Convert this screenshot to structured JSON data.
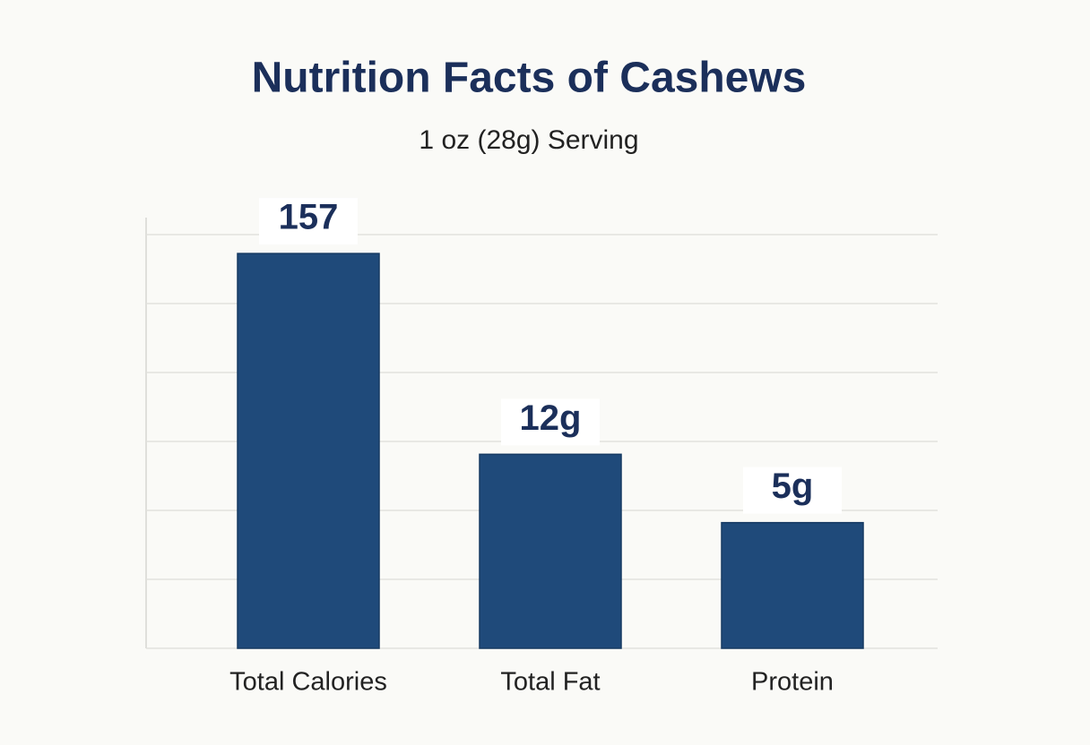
{
  "chart_data": {
    "type": "bar",
    "title": "Nutrition Facts of Cashews",
    "subtitle": "1 oz (28g) Serving",
    "categories": [
      "Total Calories",
      "Total Fat",
      "Protein"
    ],
    "values": [
      157,
      12,
      5
    ],
    "value_labels": [
      "157",
      "12g",
      "5g"
    ],
    "color": "#1f4a7a",
    "log_scale": true,
    "ylim": [
      1,
      200
    ],
    "grid": true
  }
}
